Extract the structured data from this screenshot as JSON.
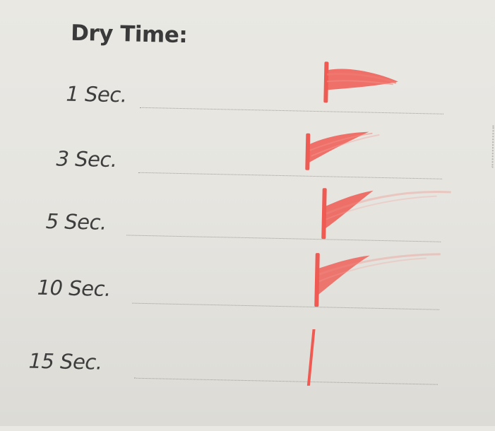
{
  "title": "Dry Time:",
  "rows": [
    {
      "label": "1 Sec."
    },
    {
      "label": "3 Sec."
    },
    {
      "label": "5 Sec."
    },
    {
      "label": "10 Sec."
    },
    {
      "label": "15 Sec."
    }
  ],
  "ink_color": "#ef5a52"
}
